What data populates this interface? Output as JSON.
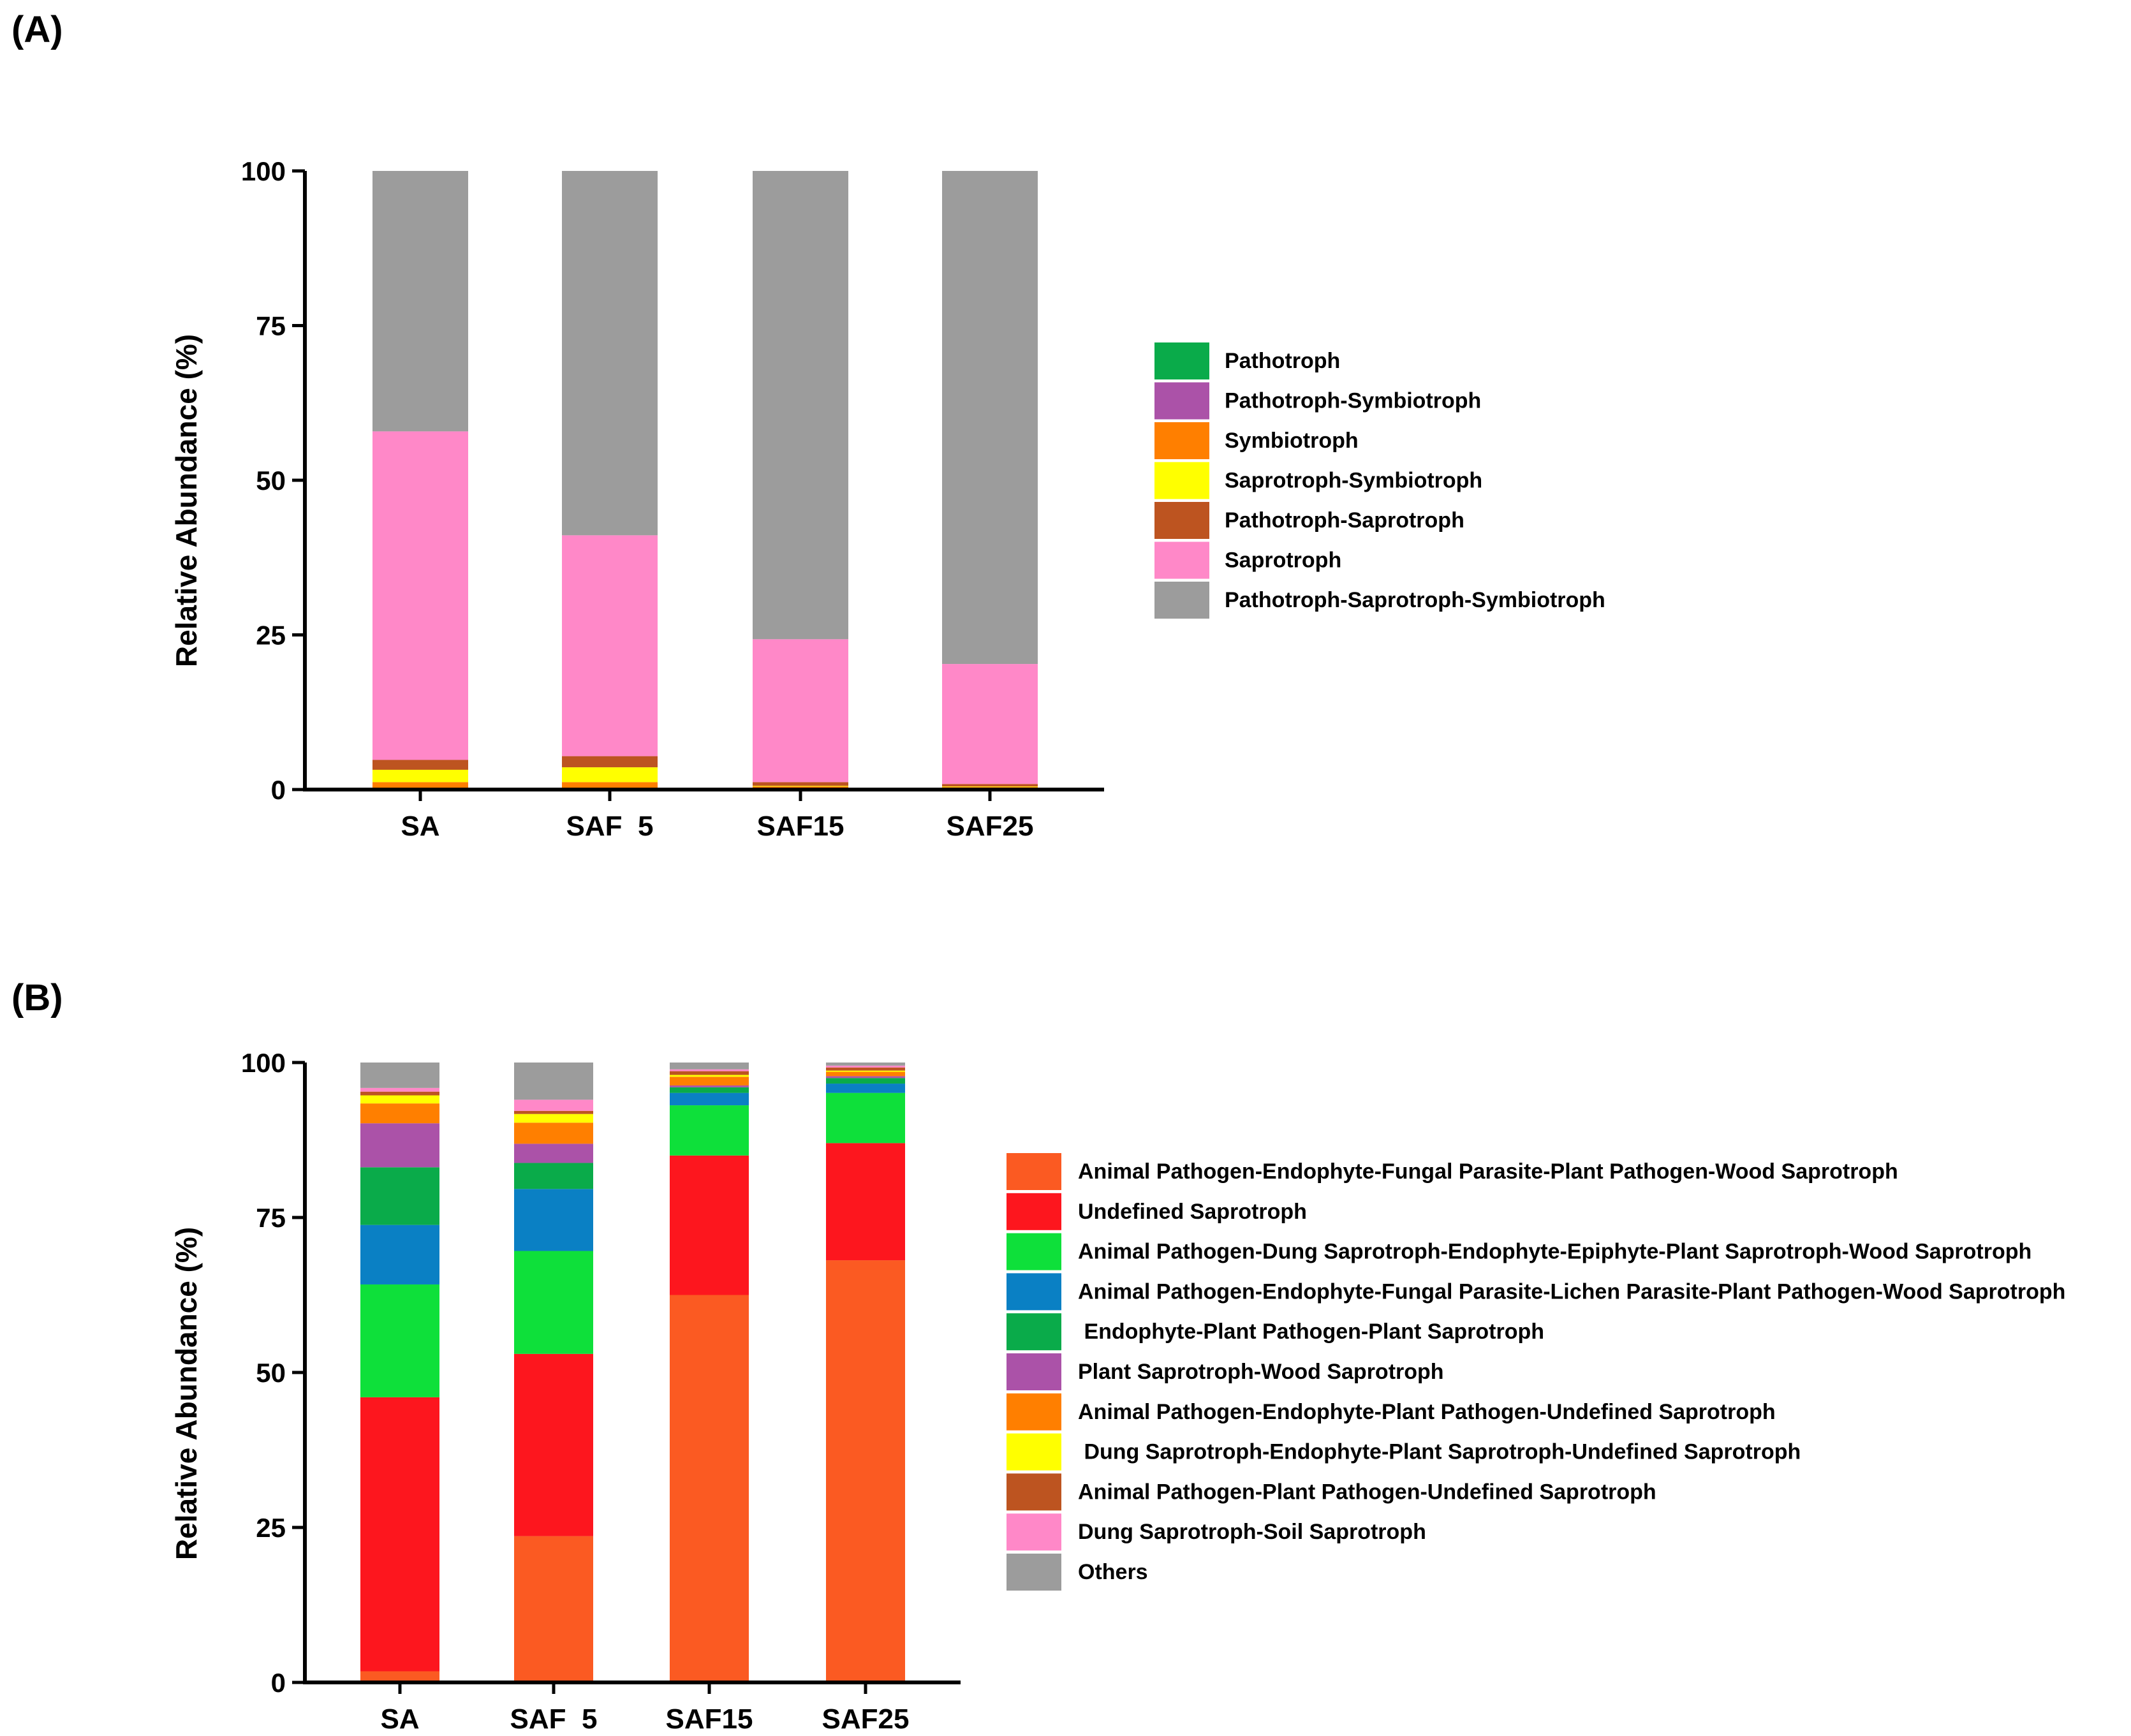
{
  "chart_data": [
    {
      "panel_label": "(A)",
      "type": "bar",
      "stacked": true,
      "ylabel": "Relative Abundance (%)",
      "ylim": [
        0,
        100
      ],
      "yticks": [
        "0",
        "25",
        "50",
        "75",
        "100"
      ],
      "categories": [
        "SA",
        "SAF  5",
        "SAF15",
        "SAF25"
      ],
      "legend_position": "right",
      "series": [
        {
          "name": "Pathotroph",
          "color": "#0aab4a",
          "values": [
            0.1,
            0.1,
            0.1,
            0.1
          ]
        },
        {
          "name": "Pathotroph-Symbiotroph",
          "color": "#ab52a8",
          "values": [
            0.1,
            0.1,
            0.1,
            0.1
          ]
        },
        {
          "name": "Symbiotroph",
          "color": "#ff7f00",
          "values": [
            1.0,
            1.0,
            0.3,
            0.2
          ]
        },
        {
          "name": "Saprotroph-Symbiotroph",
          "color": "#ffff00",
          "values": [
            2.0,
            2.4,
            0.1,
            0.1
          ]
        },
        {
          "name": "Pathotroph-Saprotroph",
          "color": "#bd5420",
          "values": [
            1.6,
            1.8,
            0.6,
            0.4
          ]
        },
        {
          "name": "Saprotroph",
          "color": "#ff88c8",
          "values": [
            53.1,
            35.7,
            23.1,
            19.4
          ]
        },
        {
          "name": "Pathotroph-Saprotroph-Symbiotroph",
          "color": "#9c9c9c",
          "values": [
            42.1,
            58.9,
            75.7,
            79.7
          ]
        }
      ]
    },
    {
      "panel_label": "(B)",
      "type": "bar",
      "stacked": true,
      "ylabel": "Relative Abundance (%)",
      "ylim": [
        0,
        100
      ],
      "yticks": [
        "0",
        "25",
        "50",
        "75",
        "100"
      ],
      "categories": [
        "SA",
        "SAF  5",
        "SAF15",
        "SAF25"
      ],
      "legend_position": "right",
      "series": [
        {
          "name": "Animal Pathogen-Endophyte-Fungal Parasite-Plant Pathogen-Wood Saprotroph",
          "color": "#fb5a22",
          "values": [
            1.8,
            23.6,
            62.5,
            68.1
          ]
        },
        {
          "name": "Undefined Saprotroph",
          "color": "#fd161e",
          "values": [
            44.2,
            29.4,
            22.5,
            18.9
          ]
        },
        {
          "name": "Animal Pathogen-Dung Saprotroph-Endophyte-Epiphyte-Plant Saprotroph-Wood Saprotroph",
          "color": "#0ee03a",
          "values": [
            18.2,
            16.6,
            8.1,
            8.1
          ]
        },
        {
          "name": "Animal Pathogen-Endophyte-Fungal Parasite-Lichen Parasite-Plant Pathogen-Wood Saprotroph",
          "color": "#0a80c4",
          "values": [
            9.6,
            10.0,
            2.0,
            1.5
          ]
        },
        {
          "name": " Endophyte-Plant Pathogen-Plant Saprotroph",
          "color": "#0aab4a",
          "values": [
            9.3,
            4.2,
            0.9,
            0.9
          ]
        },
        {
          "name": "Plant Saprotroph-Wood Saprotroph",
          "color": "#ab52a8",
          "values": [
            7.1,
            3.1,
            0.3,
            0.3
          ]
        },
        {
          "name": "Animal Pathogen-Endophyte-Plant Pathogen-Undefined Saprotroph",
          "color": "#ff7f00",
          "values": [
            3.2,
            3.4,
            1.4,
            0.7
          ]
        },
        {
          "name": " Dung Saprotroph-Endophyte-Plant Saprotroph-Undefined Saprotroph",
          "color": "#ffff00",
          "values": [
            1.3,
            1.4,
            0.3,
            0.2
          ]
        },
        {
          "name": "Animal Pathogen-Plant Pathogen-Undefined Saprotroph",
          "color": "#bd5420",
          "values": [
            0.6,
            0.5,
            0.6,
            0.5
          ]
        },
        {
          "name": "Dung Saprotroph-Soil Saprotroph",
          "color": "#ff88c8",
          "values": [
            0.6,
            1.8,
            0.3,
            0.3
          ]
        },
        {
          "name": "Others",
          "color": "#9c9c9c",
          "values": [
            4.1,
            6.0,
            1.1,
            0.5
          ]
        }
      ]
    }
  ]
}
